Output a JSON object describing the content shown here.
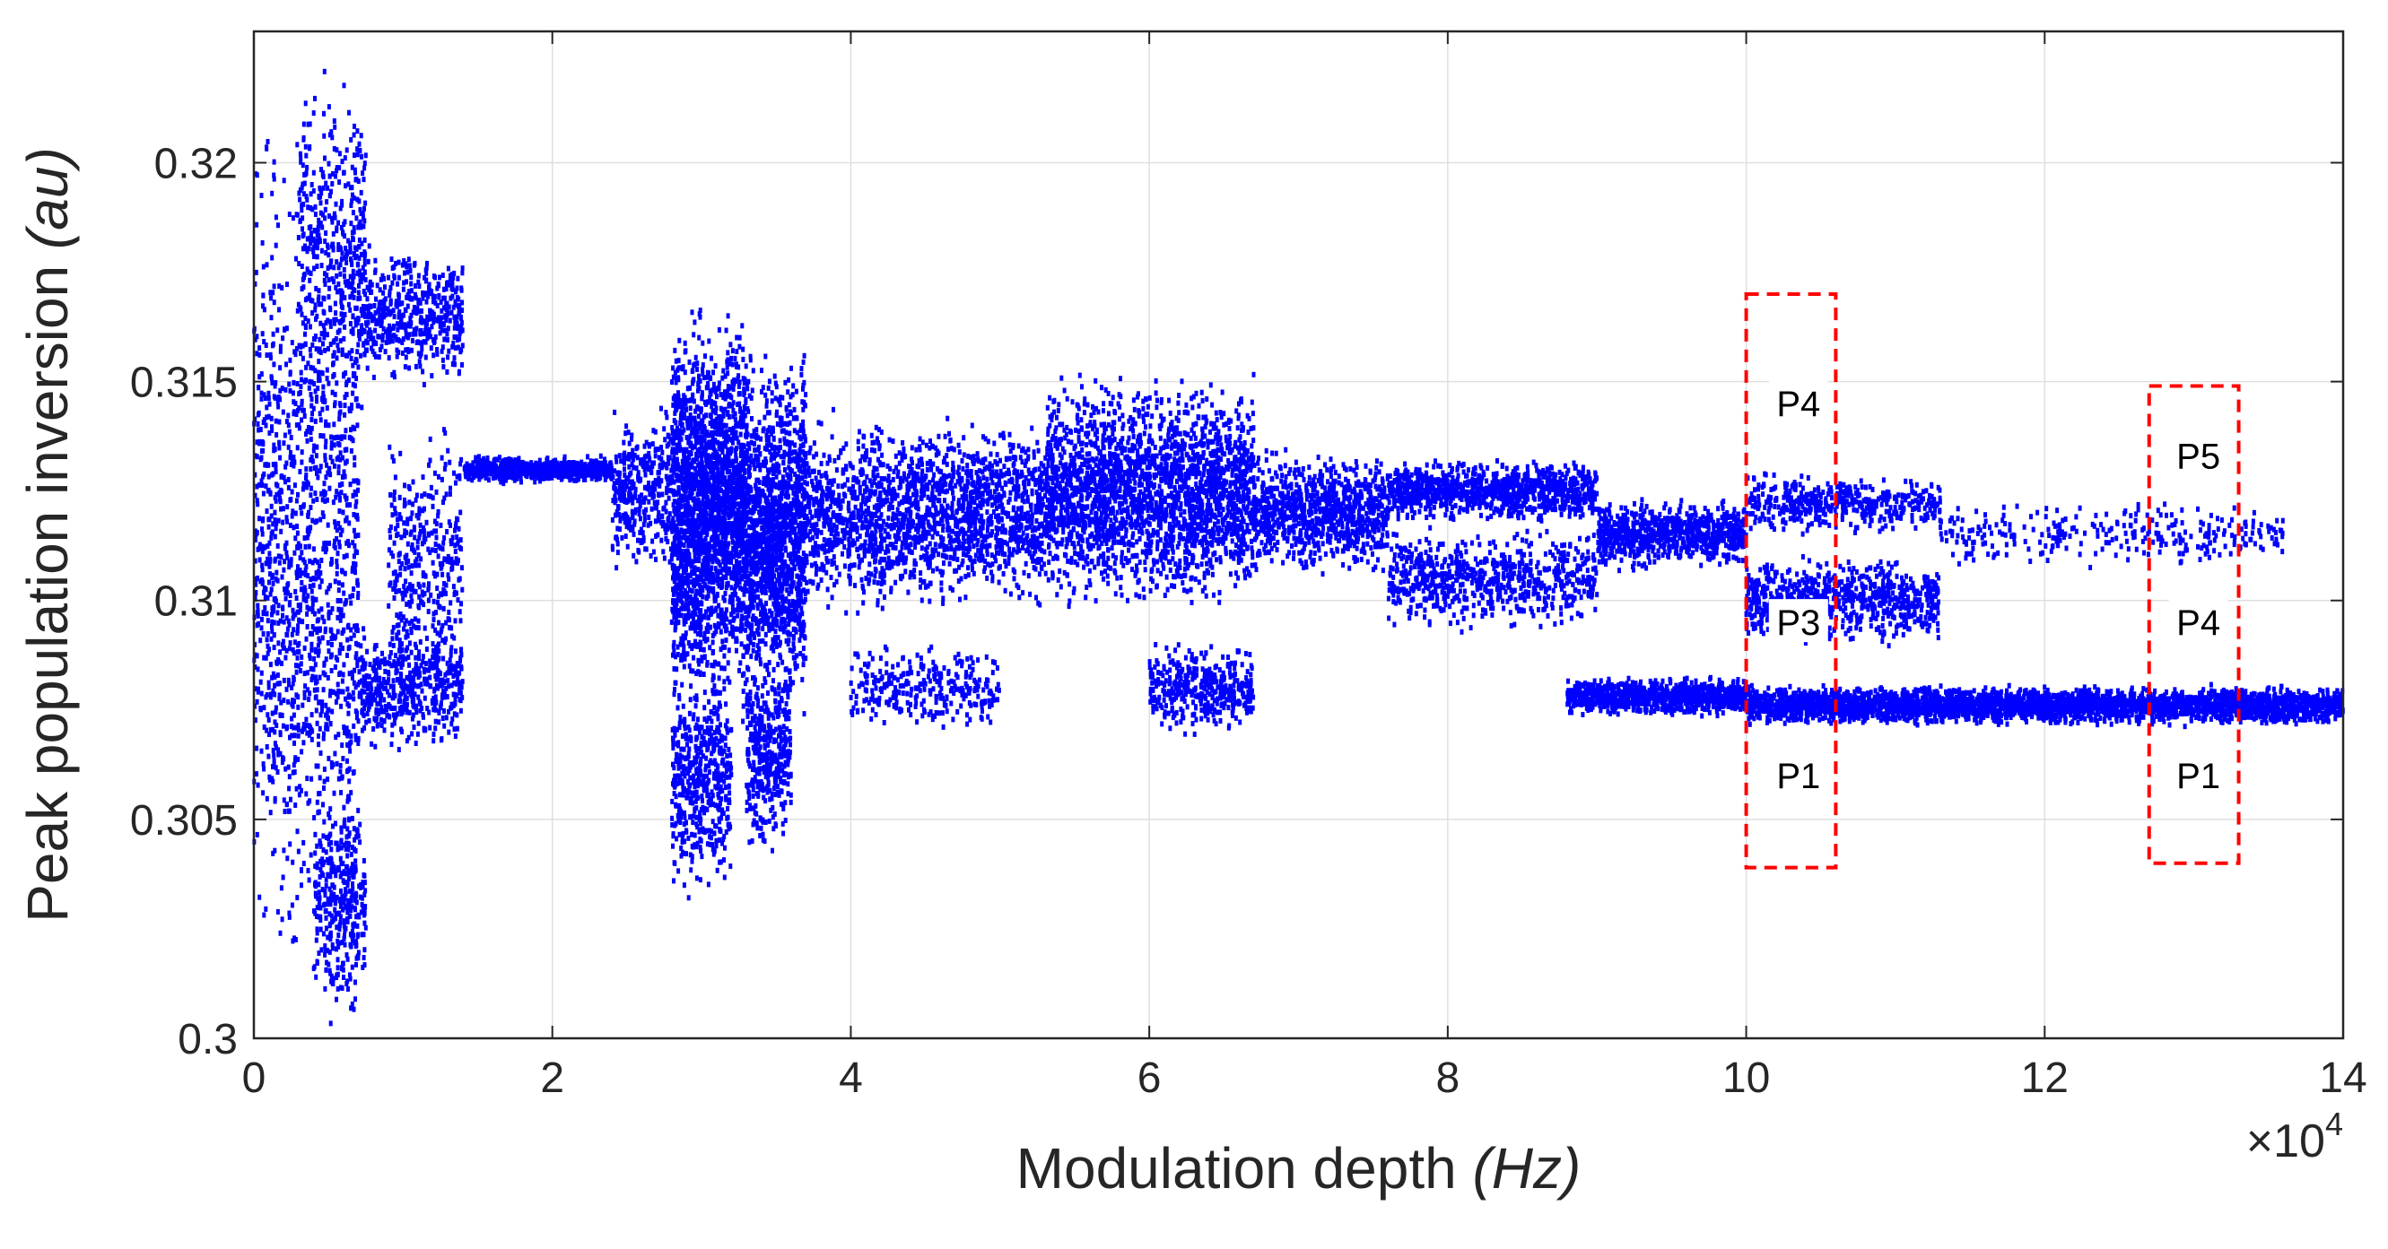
{
  "chart_data": {
    "type": "scatter",
    "title": "",
    "xlabel": "Modulation depth",
    "xlabel_unit": "(Hz)",
    "ylabel": "Peak population inversion",
    "ylabel_unit": "(au)",
    "x_multiplier": "×10",
    "x_multiplier_exponent": "4",
    "xlim": [
      0,
      140000
    ],
    "ylim": [
      0.3,
      0.323
    ],
    "x_ticks": [
      0,
      20000,
      40000,
      60000,
      80000,
      100000,
      120000,
      140000
    ],
    "x_tick_labels": [
      "0",
      "2",
      "4",
      "6",
      "8",
      "10",
      "12",
      "14"
    ],
    "y_ticks": [
      0.3,
      0.305,
      0.31,
      0.315,
      0.32
    ],
    "y_tick_labels": [
      "0.3",
      "0.305",
      "0.31",
      "0.315",
      "0.32"
    ],
    "grid": true,
    "series_color": "#0000ff",
    "regions": [
      {
        "name": "box-1",
        "x_range": [
          100000,
          106000
        ],
        "y_range": [
          0.3039,
          0.317
        ],
        "color": "#ff0000",
        "labels": [
          {
            "text": "P4",
            "x": 103500,
            "y": 0.3145
          },
          {
            "text": "P3",
            "x": 103500,
            "y": 0.3095
          },
          {
            "text": "P1",
            "x": 103500,
            "y": 0.306
          }
        ]
      },
      {
        "name": "box-2",
        "x_range": [
          127000,
          133000
        ],
        "y_range": [
          0.304,
          0.3149
        ],
        "color": "#ff0000",
        "labels": [
          {
            "text": "P5",
            "x": 130300,
            "y": 0.3133
          },
          {
            "text": "P4",
            "x": 130300,
            "y": 0.3095
          },
          {
            "text": "P1",
            "x": 130300,
            "y": 0.306
          }
        ]
      }
    ],
    "bands": [
      {
        "x0": 0,
        "x1": 7000,
        "y_center": 0.311,
        "y_spread": 0.011,
        "density": 1400
      },
      {
        "x0": 3000,
        "x1": 7500,
        "y_center": 0.318,
        "y_spread": 0.0045,
        "density": 400
      },
      {
        "x0": 4000,
        "x1": 7500,
        "y_center": 0.303,
        "y_spread": 0.003,
        "density": 350
      },
      {
        "x0": 7000,
        "x1": 14000,
        "y_center": 0.3165,
        "y_spread": 0.0018,
        "density": 500
      },
      {
        "x0": 7000,
        "x1": 14000,
        "y_center": 0.308,
        "y_spread": 0.0018,
        "density": 500
      },
      {
        "x0": 9000,
        "x1": 14000,
        "y_center": 0.311,
        "y_spread": 0.0035,
        "density": 350
      },
      {
        "x0": 14000,
        "x1": 24000,
        "y_center": 0.313,
        "y_spread": 0.00035,
        "density": 700
      },
      {
        "x0": 24000,
        "x1": 28000,
        "y_center": 0.3125,
        "y_spread": 0.0022,
        "density": 350
      },
      {
        "x0": 28000,
        "x1": 33000,
        "y_center": 0.312,
        "y_spread": 0.0052,
        "density": 2200
      },
      {
        "x0": 28000,
        "x1": 32000,
        "y_center": 0.306,
        "y_spread": 0.003,
        "density": 500
      },
      {
        "x0": 33000,
        "x1": 37000,
        "y_center": 0.3115,
        "y_spread": 0.0045,
        "density": 1400
      },
      {
        "x0": 33000,
        "x1": 36000,
        "y_center": 0.3065,
        "y_spread": 0.0025,
        "density": 400
      },
      {
        "x0": 37000,
        "x1": 53000,
        "y_center": 0.312,
        "y_spread": 0.0025,
        "density": 1800
      },
      {
        "x0": 40000,
        "x1": 50000,
        "y_center": 0.308,
        "y_spread": 0.0012,
        "density": 300
      },
      {
        "x0": 53000,
        "x1": 67000,
        "y_center": 0.3125,
        "y_spread": 0.003,
        "density": 2400
      },
      {
        "x0": 60000,
        "x1": 67000,
        "y_center": 0.308,
        "y_spread": 0.0012,
        "density": 400
      },
      {
        "x0": 67000,
        "x1": 76000,
        "y_center": 0.312,
        "y_spread": 0.0016,
        "density": 900
      },
      {
        "x0": 76000,
        "x1": 90000,
        "y_center": 0.3125,
        "y_spread": 0.0008,
        "density": 1000
      },
      {
        "x0": 76000,
        "x1": 90000,
        "y_center": 0.3105,
        "y_spread": 0.0013,
        "density": 700
      },
      {
        "x0": 88000,
        "x1": 100000,
        "y_center": 0.3078,
        "y_spread": 0.0005,
        "density": 900
      },
      {
        "x0": 90000,
        "x1": 100000,
        "y_center": 0.3115,
        "y_spread": 0.0009,
        "density": 800
      },
      {
        "x0": 100000,
        "x1": 113000,
        "y_center": 0.31,
        "y_spread": 0.0011,
        "density": 800
      },
      {
        "x0": 100000,
        "x1": 113000,
        "y_center": 0.3122,
        "y_spread": 0.0008,
        "density": 450
      },
      {
        "x0": 100000,
        "x1": 140000,
        "y_center": 0.3076,
        "y_spread": 0.0005,
        "density": 3400
      },
      {
        "x0": 113000,
        "x1": 136000,
        "y_center": 0.3115,
        "y_spread": 0.0008,
        "density": 300
      }
    ]
  }
}
